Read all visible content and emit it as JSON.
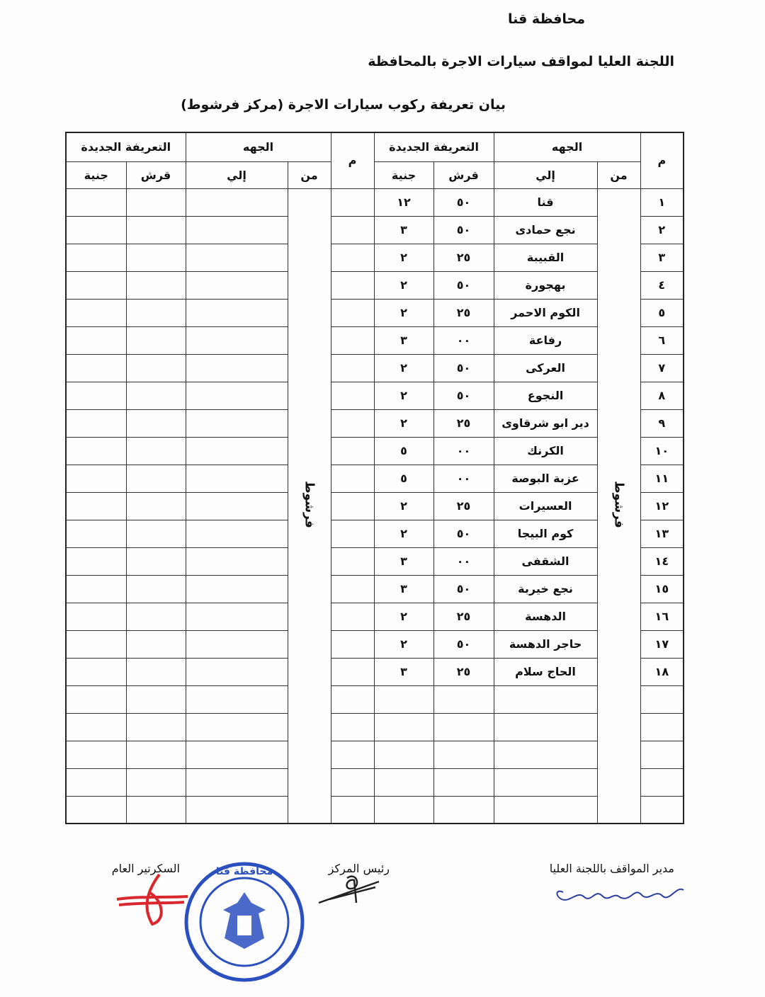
{
  "header": {
    "governorate": "محافظة قنا",
    "committee": "اللجنة العليا لمواقف سيارات الاجرة بالمحافظة",
    "title": "بيان تعريفة ركوب سيارات الاجرة (مركز فرشوط)"
  },
  "table": {
    "col_num": "م",
    "col_direction": "الجهه",
    "col_from": "من",
    "col_to": "إلي",
    "col_new_tariff": "التعريفة الجديدة",
    "col_piasters": "قرش",
    "col_pounds": "جنية",
    "from_value": "فرشوط",
    "rows": [
      {
        "num": "١",
        "to": "قنا",
        "piasters": "٥٠",
        "pounds": "١٢"
      },
      {
        "num": "٢",
        "to": "نجع حمادى",
        "piasters": "٥٠",
        "pounds": "٣"
      },
      {
        "num": "٣",
        "to": "القبيبة",
        "piasters": "٢٥",
        "pounds": "٢"
      },
      {
        "num": "٤",
        "to": "بهجورة",
        "piasters": "٥٠",
        "pounds": "٢"
      },
      {
        "num": "٥",
        "to": "الكوم الاحمر",
        "piasters": "٢٥",
        "pounds": "٢"
      },
      {
        "num": "٦",
        "to": "رفاعة",
        "piasters": "٠٠",
        "pounds": "٣"
      },
      {
        "num": "٧",
        "to": "العركى",
        "piasters": "٥٠",
        "pounds": "٢"
      },
      {
        "num": "٨",
        "to": "النجوع",
        "piasters": "٥٠",
        "pounds": "٢"
      },
      {
        "num": "٩",
        "to": "دير ابو شرقاوى",
        "piasters": "٢٥",
        "pounds": "٢"
      },
      {
        "num": "١٠",
        "to": "الكرنك",
        "piasters": "٠٠",
        "pounds": "٥"
      },
      {
        "num": "١١",
        "to": "عزبة البوصة",
        "piasters": "٠٠",
        "pounds": "٥"
      },
      {
        "num": "١٢",
        "to": "العسيرات",
        "piasters": "٢٥",
        "pounds": "٢"
      },
      {
        "num": "١٣",
        "to": "كوم البيجا",
        "piasters": "٥٠",
        "pounds": "٢"
      },
      {
        "num": "١٤",
        "to": "الشقفى",
        "piasters": "٠٠",
        "pounds": "٣"
      },
      {
        "num": "١٥",
        "to": "نجع خيربة",
        "piasters": "٥٠",
        "pounds": "٣"
      },
      {
        "num": "١٦",
        "to": "الدهسة",
        "piasters": "٢٥",
        "pounds": "٢"
      },
      {
        "num": "١٧",
        "to": "حاجر الدهسة",
        "piasters": "٥٠",
        "pounds": "٢"
      },
      {
        "num": "١٨",
        "to": "الحاج سلام",
        "piasters": "٢٥",
        "pounds": "٣"
      },
      {
        "num": "",
        "to": "",
        "piasters": "",
        "pounds": ""
      },
      {
        "num": "",
        "to": "",
        "piasters": "",
        "pounds": ""
      },
      {
        "num": "",
        "to": "",
        "piasters": "",
        "pounds": ""
      },
      {
        "num": "",
        "to": "",
        "piasters": "",
        "pounds": ""
      },
      {
        "num": "",
        "to": "",
        "piasters": "",
        "pounds": ""
      }
    ]
  },
  "signatures": {
    "manager": "مدير المواقف باللجنة العليا",
    "center_head": "رئيس المركز",
    "secretary": "السكرتير العام"
  },
  "stamp": {
    "text": "محافظة قنا"
  },
  "colors": {
    "stamp": "#2a4fbf",
    "secretary_signature": "#d8282e",
    "manager_signature": "#2b3fa0"
  }
}
